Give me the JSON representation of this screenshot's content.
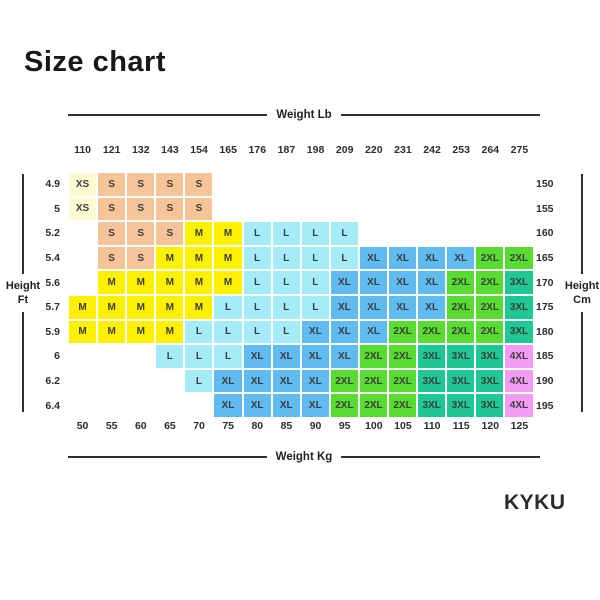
{
  "title": "Size chart",
  "logo": "KYKU",
  "chart_data": {
    "type": "heatmap",
    "title": "Size chart",
    "x_axis_top": {
      "label": "Weight Lb",
      "values": [
        110,
        121,
        132,
        143,
        154,
        165,
        176,
        187,
        198,
        209,
        220,
        231,
        242,
        253,
        264,
        275
      ]
    },
    "x_axis_bottom": {
      "label": "Weight Kg",
      "values": [
        50,
        55,
        60,
        65,
        70,
        75,
        80,
        85,
        90,
        95,
        100,
        105,
        110,
        115,
        120,
        125
      ]
    },
    "y_axis_left": {
      "label": "Height Ft",
      "values": [
        4.9,
        5,
        5.2,
        5.4,
        5.6,
        5.7,
        5.9,
        6,
        6.2,
        6.4
      ]
    },
    "y_axis_right": {
      "label": "Height Cm",
      "values": [
        150,
        155,
        160,
        165,
        170,
        175,
        180,
        185,
        190,
        195
      ]
    },
    "sizes": [
      "XS",
      "S",
      "M",
      "L",
      "XL",
      "2XL",
      "3XL",
      "4XL"
    ],
    "size_colors": {
      "XS": "#FBFAD0",
      "S": "#F6C498",
      "M": "#FDF000",
      "L": "#A5ECFB",
      "XL": "#60BBF0",
      "2XL": "#59DC31",
      "3XL": "#1FC893",
      "4XL": "#F29BF2"
    },
    "cells": [
      [
        "XS",
        "S",
        "S",
        "S",
        "S",
        "",
        "",
        "",
        "",
        "",
        "",
        "",
        "",
        "",
        "",
        ""
      ],
      [
        "XS",
        "S",
        "S",
        "S",
        "S",
        "",
        "",
        "",
        "",
        "",
        "",
        "",
        "",
        "",
        "",
        ""
      ],
      [
        "",
        "S",
        "S",
        "S",
        "M",
        "M",
        "L",
        "L",
        "L",
        "L",
        "",
        "",
        "",
        "",
        "",
        ""
      ],
      [
        "",
        "S",
        "S",
        "M",
        "M",
        "M",
        "L",
        "L",
        "L",
        "L",
        "XL",
        "XL",
        "XL",
        "XL",
        "2XL",
        "2XL"
      ],
      [
        "",
        "M",
        "M",
        "M",
        "M",
        "M",
        "L",
        "L",
        "L",
        "XL",
        "XL",
        "XL",
        "XL",
        "2XL",
        "2XL",
        "3XL"
      ],
      [
        "M",
        "M",
        "M",
        "M",
        "M",
        "L",
        "L",
        "L",
        "L",
        "XL",
        "XL",
        "XL",
        "XL",
        "2XL",
        "2XL",
        "3XL"
      ],
      [
        "M",
        "M",
        "M",
        "M",
        "L",
        "L",
        "L",
        "L",
        "XL",
        "XL",
        "XL",
        "2XL",
        "2XL",
        "2XL",
        "2XL",
        "3XL"
      ],
      [
        "",
        "",
        "",
        "L",
        "L",
        "L",
        "XL",
        "XL",
        "XL",
        "XL",
        "2XL",
        "2XL",
        "3XL",
        "3XL",
        "3XL",
        "4XL"
      ],
      [
        "",
        "",
        "",
        "",
        "L",
        "XL",
        "XL",
        "XL",
        "XL",
        "2XL",
        "2XL",
        "2XL",
        "3XL",
        "3XL",
        "3XL",
        "4XL"
      ],
      [
        "",
        "",
        "",
        "",
        "",
        "XL",
        "XL",
        "XL",
        "XL",
        "2XL",
        "2XL",
        "2XL",
        "3XL",
        "3XL",
        "3XL",
        "4XL"
      ]
    ]
  }
}
